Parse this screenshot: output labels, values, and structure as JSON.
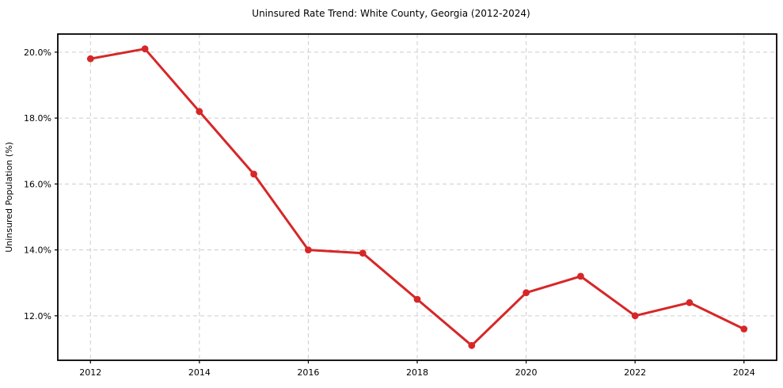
{
  "chart_data": {
    "type": "line",
    "title": "Uninsured Rate Trend: White County, Georgia (2012-2024)",
    "xlabel": "",
    "ylabel": "Uninsured Population (%)",
    "x": [
      2012,
      2013,
      2014,
      2015,
      2016,
      2017,
      2018,
      2019,
      2020,
      2021,
      2022,
      2023,
      2024
    ],
    "values": [
      19.8,
      20.1,
      18.2,
      16.3,
      14.0,
      13.9,
      12.5,
      11.1,
      12.7,
      13.2,
      12.0,
      12.4,
      11.6
    ],
    "xlim": [
      2011.4,
      2024.6
    ],
    "ylim": [
      10.65,
      20.55
    ],
    "xticks": {
      "values": [
        2012,
        2014,
        2016,
        2018,
        2020,
        2022,
        2024
      ],
      "labels": [
        "2012",
        "2014",
        "2016",
        "2018",
        "2020",
        "2022",
        "2024"
      ]
    },
    "yticks": {
      "values": [
        12,
        14,
        16,
        18,
        20
      ],
      "labels": [
        "12.0%",
        "14.0%",
        "16.0%",
        "18.0%",
        "20.0%"
      ]
    },
    "grid": true,
    "legend_position": "none",
    "colors": {
      "line": "#d62728",
      "marker": "#d62728",
      "grid": "#cccccc",
      "spine": "#000000",
      "background": "#ffffff",
      "text": "#000000"
    }
  }
}
